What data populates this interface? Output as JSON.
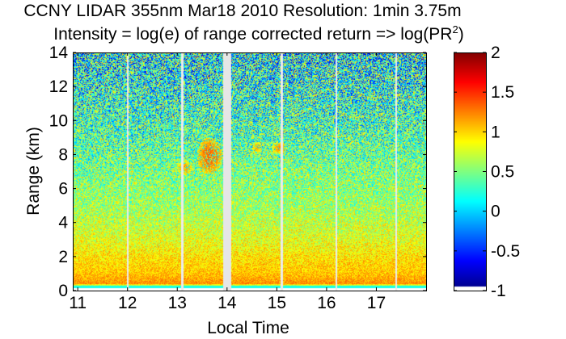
{
  "chart_data": {
    "type": "heatmap",
    "title": "CCNY LIDAR 355nm Mar18 2010 Resolution: 1min 3.75m",
    "subtitle_prefix": "Intensity = log(e) of range corrected return => log(PR",
    "subtitle_superscript": "2",
    "subtitle_suffix": ")",
    "xlabel": "Local Time",
    "ylabel": "Range (km)",
    "xlim": [
      10.9,
      18.0
    ],
    "ylim": [
      0,
      14
    ],
    "xticks": [
      11,
      12,
      13,
      14,
      15,
      16,
      17
    ],
    "yticks": [
      0,
      2,
      4,
      6,
      8,
      10,
      12,
      14
    ],
    "colorbar": {
      "range": [
        -1,
        2
      ],
      "ticks": [
        -1,
        -0.5,
        0,
        0.5,
        1,
        1.5,
        2
      ],
      "colormap": "jet"
    },
    "data_gaps_hours": [
      12.0,
      13.1,
      15.1,
      16.2,
      17.4
    ],
    "missing_block_hours": [
      13.92,
      14.08
    ],
    "profile_by_range_km": [
      {
        "range": 0.2,
        "value": 0.1
      },
      {
        "range": 0.4,
        "value": 1.2
      },
      {
        "range": 1.0,
        "value": 1.05
      },
      {
        "range": 2.0,
        "value": 0.95
      },
      {
        "range": 3.0,
        "value": 0.8
      },
      {
        "range": 5.0,
        "value": 0.6
      },
      {
        "range": 7.0,
        "value": 0.5
      },
      {
        "range": 9.0,
        "value": 0.35
      },
      {
        "range": 12.0,
        "value": 0.2
      },
      {
        "range": 14.0,
        "value": 0.1
      }
    ],
    "cloud_features": [
      {
        "time_start": 13.0,
        "time_end": 13.3,
        "range_low": 6.8,
        "range_high": 7.6,
        "value": 1.2
      },
      {
        "time_start": 13.4,
        "time_end": 13.9,
        "range_low": 6.8,
        "range_high": 9.0,
        "value": 1.35
      },
      {
        "time_start": 14.5,
        "time_end": 14.7,
        "range_low": 8.0,
        "range_high": 8.8,
        "value": 1.1
      },
      {
        "time_start": 14.9,
        "time_end": 15.2,
        "range_low": 8.0,
        "range_high": 8.8,
        "value": 1.2
      }
    ]
  }
}
